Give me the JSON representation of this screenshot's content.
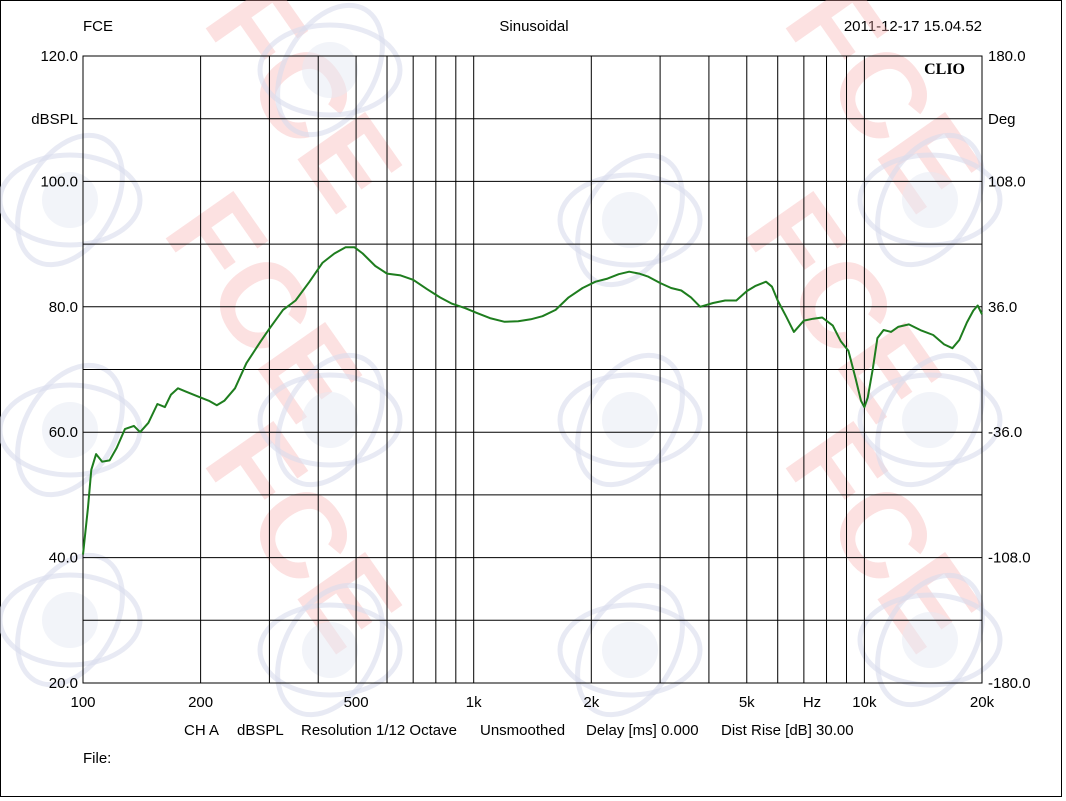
{
  "header": {
    "left": "FCE",
    "center": "Sinusoidal",
    "right": "2011-12-17 15.04.52"
  },
  "brand": "CLIO",
  "footer": {
    "channel": "CH A",
    "unit": "dBSPL",
    "resolution": "Resolution 1/12 Octave",
    "smoothing": "Unsmoothed",
    "delay": "Delay [ms] 0.000",
    "dist_rise": "Dist Rise [dB] 30.00",
    "file_label": "File:"
  },
  "chart_data": {
    "type": "line",
    "xscale": "log",
    "xlim": [
      100,
      20000
    ],
    "ylim": [
      20,
      120
    ],
    "y2lim": [
      -180,
      180
    ],
    "ylabel": "dBSPL",
    "y2label": "Deg",
    "xunit_label": "Hz",
    "grid": true,
    "line_color": "#1e7d1e",
    "x_ticks": [
      {
        "v": 100,
        "label": "100"
      },
      {
        "v": 200,
        "label": "200"
      },
      {
        "v": 500,
        "label": "500"
      },
      {
        "v": 1000,
        "label": "1k"
      },
      {
        "v": 2000,
        "label": "2k"
      },
      {
        "v": 5000,
        "label": "5k"
      },
      {
        "v": 10000,
        "label": "10k"
      },
      {
        "v": 20000,
        "label": "20k"
      }
    ],
    "y_ticks": [
      {
        "v": 120,
        "label": "120.0"
      },
      {
        "v": 100,
        "label": "100.0"
      },
      {
        "v": 80,
        "label": "80.0"
      },
      {
        "v": 60,
        "label": "60.0"
      },
      {
        "v": 40,
        "label": "40.0"
      },
      {
        "v": 20,
        "label": "20.0"
      }
    ],
    "y2_ticks": [
      {
        "v": 180,
        "label": "180.0"
      },
      {
        "v": 108,
        "label": "108.0"
      },
      {
        "v": 36,
        "label": "36.0"
      },
      {
        "v": -36,
        "label": "-36.0"
      },
      {
        "v": -108,
        "label": "-108.0"
      },
      {
        "v": -180,
        "label": "-180.0"
      }
    ],
    "series": [
      {
        "x": [
          100,
          103,
          105,
          108,
          112,
          117,
          122,
          128,
          135,
          140,
          147,
          155,
          162,
          168,
          175,
          183,
          195,
          210,
          220,
          230,
          245,
          262,
          285,
          300,
          325,
          350,
          380,
          410,
          440,
          470,
          495,
          520,
          560,
          600,
          650,
          700,
          760,
          820,
          880,
          950,
          1020,
          1100,
          1200,
          1300,
          1400,
          1500,
          1620,
          1750,
          1900,
          2050,
          2200,
          2350,
          2500,
          2650,
          2800,
          3000,
          3200,
          3400,
          3600,
          3800,
          4100,
          4400,
          4700,
          5000,
          5250,
          5400,
          5600,
          5800,
          6000,
          6300,
          6600,
          7000,
          7400,
          7800,
          8300,
          8700,
          9100,
          9500,
          9800,
          10000,
          10200,
          10500,
          10800,
          11200,
          11700,
          12200,
          13000,
          14000,
          15000,
          16000,
          16800,
          17500,
          18300,
          19000,
          19500,
          20000
        ],
        "y": [
          40.5,
          48,
          54,
          56.5,
          55.3,
          55.5,
          57.5,
          60.5,
          61,
          60,
          61.5,
          64.5,
          64,
          66,
          67,
          66.5,
          65.8,
          65,
          64.3,
          65,
          67,
          71,
          74.5,
          76.5,
          79.5,
          81,
          84,
          87,
          88.5,
          89.5,
          89.5,
          88.5,
          86.5,
          85.3,
          85,
          84.3,
          82.8,
          81.5,
          80.5,
          79.8,
          79,
          78.2,
          77.6,
          77.7,
          78,
          78.5,
          79.5,
          81.5,
          83,
          84,
          84.5,
          85.2,
          85.6,
          85.3,
          84.8,
          83.8,
          83,
          82.6,
          81.5,
          80,
          80.6,
          81,
          81,
          82.5,
          83.3,
          83.6,
          84,
          83.2,
          81,
          78.5,
          76,
          77.8,
          78.1,
          78.3,
          77,
          74.5,
          73,
          68.5,
          65,
          64,
          65.5,
          70,
          75,
          76.3,
          76,
          76.8,
          77.2,
          76.2,
          75.5,
          74,
          73.4,
          74.7,
          77.5,
          79.4,
          80.2,
          78.8
        ]
      }
    ]
  }
}
